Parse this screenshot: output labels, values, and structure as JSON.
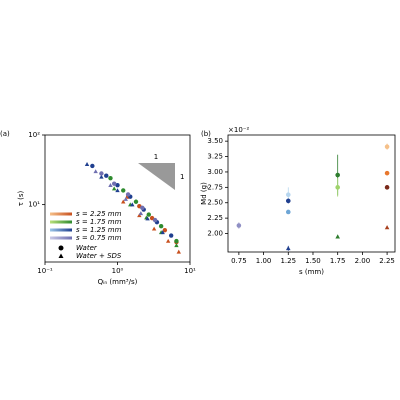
{
  "chart_data": [
    {
      "type": "log-scatter",
      "panel_label": "(a)",
      "x_label": "Qᵢₙ (mm³/s)",
      "y_label": "τ (s)",
      "xlim": [
        0.1,
        10
      ],
      "ylim": [
        1.5,
        100
      ],
      "log_x": true,
      "log_y": true,
      "xticks": [
        {
          "value": 0.1,
          "label": "10⁻¹"
        },
        {
          "value": 1,
          "label": "10⁰"
        },
        {
          "value": 10,
          "label": "10¹"
        }
      ],
      "yticks": [
        {
          "value": 10,
          "label": "10¹"
        },
        {
          "value": 100,
          "label": "10²"
        }
      ],
      "slope_labels": [
        "1",
        "1"
      ],
      "markers": {
        "water": {
          "label": "Water",
          "shape": "circle"
        },
        "water_sds": {
          "label": "Water + SDS",
          "shape": "triangle"
        }
      },
      "series": [
        {
          "name": "s = 2.25 mm",
          "color": "#c8501e",
          "light": "#f5c089",
          "water": {
            "x": [
              1.4,
              2.0,
              3.0,
              4.5,
              6.5
            ],
            "y": [
              13,
              9.5,
              6.4,
              4.3,
              2.9
            ]
          },
          "water_sds": {
            "x": [
              1.2,
              2.0,
              3.2,
              5,
              7
            ],
            "y": [
              11,
              7,
              4.5,
              3,
              2.1
            ]
          }
        },
        {
          "name": "s = 1.75 mm",
          "color": "#2e8b2e",
          "light": "#b9e07a",
          "water": {
            "x": [
              0.8,
              1.2,
              1.8,
              2.7,
              4.0,
              6.5
            ],
            "y": [
              24,
              16,
              11,
              7.2,
              4.9,
              3.0
            ]
          },
          "water_sds": {
            "x": [
              0.9,
              1.5,
              2.5,
              4,
              6.5
            ],
            "y": [
              17,
              10,
              6.5,
              4,
              2.6
            ]
          }
        },
        {
          "name": "s = 1.25 mm",
          "color": "#1f3f8f",
          "light": "#9cc6e8",
          "water": {
            "x": [
              0.45,
              0.7,
              1.0,
              1.5,
              2.3,
              3.5,
              5.5
            ],
            "y": [
              36,
              26,
              19,
              13,
              8.5,
              5.6,
              3.6
            ]
          },
          "water_sds": {
            "x": [
              0.38,
              0.6,
              1.0,
              1.6,
              2.6,
              4.2
            ],
            "y": [
              38,
              25,
              16,
              10,
              6.3,
              4
            ]
          }
        },
        {
          "name": "s = 0.75 mm",
          "color": "#6f6fb0",
          "light": "#c9c9e6",
          "water": {
            "x": [
              0.6,
              0.9,
              1.4,
              2.2,
              3.3
            ],
            "y": [
              28,
              20,
              14,
              9,
              6
            ]
          },
          "water_sds": {
            "x": [
              0.5,
              0.8,
              1.3,
              2.1
            ],
            "y": [
              30,
              19,
              12,
              7.5
            ]
          }
        }
      ]
    },
    {
      "type": "errorbar-scatter",
      "panel_label": "(b)",
      "x_label": "s (mm)",
      "y_label": "Md (g)",
      "y_offset_label": "×10⁻²",
      "xlim": [
        0.64,
        2.33
      ],
      "ylim": [
        1.7,
        3.6
      ],
      "xticks": [
        0.75,
        {
          "value": 1.0,
          "label": "1.00"
        },
        1.25,
        {
          "value": 1.5,
          "label": "1.50"
        },
        1.75,
        {
          "value": 2.0,
          "label": "2.00"
        },
        2.25
      ],
      "yticks": [
        {
          "value": 2.0,
          "label": "2.00"
        },
        2.25,
        {
          "value": 2.5,
          "label": "2.50"
        },
        2.75,
        {
          "value": 3.0,
          "label": "3.00"
        },
        3.25,
        {
          "value": 3.5,
          "label": "3.50"
        }
      ],
      "points": [
        {
          "x": 0.75,
          "y": 2.13,
          "err": 0.05,
          "color": "#8f8fc4",
          "marker": "circle"
        },
        {
          "x": 1.25,
          "y": 2.63,
          "err": 0.12,
          "color": "#b7d6ef",
          "marker": "circle"
        },
        {
          "x": 1.25,
          "y": 2.53,
          "err": 0.04,
          "color": "#1f3f8f",
          "marker": "circle"
        },
        {
          "x": 1.25,
          "y": 2.35,
          "err": 0.03,
          "color": "#6ea6d6",
          "marker": "circle"
        },
        {
          "x": 1.25,
          "y": 1.76,
          "err": 0.04,
          "color": "#1f3f8f",
          "marker": "triangle"
        },
        {
          "x": 1.75,
          "y": 2.95,
          "err": 0.33,
          "color": "#2e7d2e",
          "marker": "circle"
        },
        {
          "x": 1.75,
          "y": 2.75,
          "err": 0.15,
          "color": "#9fd36b",
          "marker": "circle"
        },
        {
          "x": 1.75,
          "y": 1.95,
          "err": 0.02,
          "color": "#2e7d2e",
          "marker": "triangle"
        },
        {
          "x": 2.25,
          "y": 3.41,
          "err": 0.05,
          "color": "#f5c089",
          "marker": "circle"
        },
        {
          "x": 2.25,
          "y": 2.98,
          "err": 0.02,
          "color": "#e8782e",
          "marker": "circle"
        },
        {
          "x": 2.25,
          "y": 2.75,
          "err": 0.02,
          "color": "#7a2a1a",
          "marker": "circle"
        },
        {
          "x": 2.25,
          "y": 2.1,
          "err": 0.02,
          "color": "#a8401e",
          "marker": "triangle"
        }
      ]
    }
  ]
}
